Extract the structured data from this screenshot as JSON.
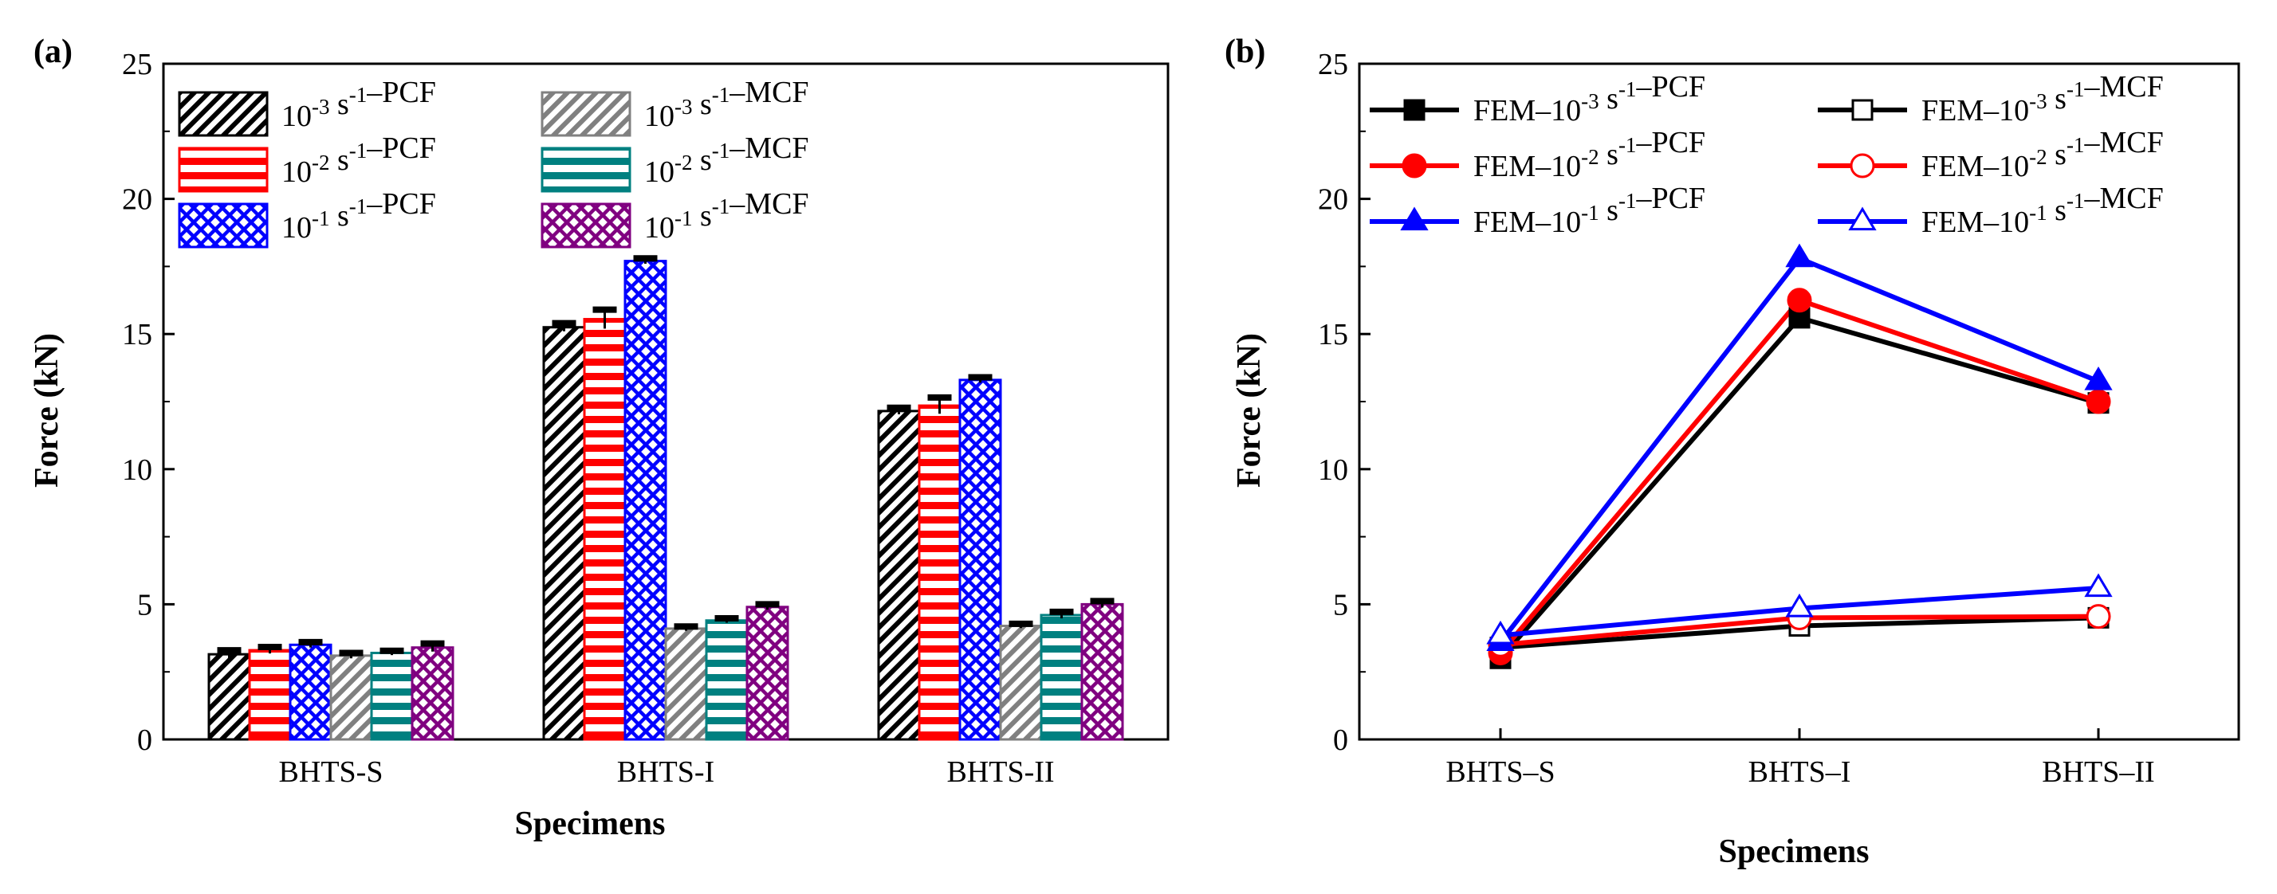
{
  "chart_data": [
    {
      "type": "bar",
      "panel_label": "(a)",
      "categories": [
        "BHTS-S",
        "BHTS-I",
        "BHTS-II"
      ],
      "xlabel": "Specimens",
      "ylabel": "Force (kN)",
      "ylim": [
        0,
        25
      ],
      "yticks": [
        "0",
        "5",
        "10",
        "15",
        "20",
        "25"
      ],
      "legend_position": "top-left",
      "series": [
        {
          "name": {
            "base": "10",
            "exp": "-3",
            "unit": " s",
            "unit_exp": "-1",
            "suffix": "–PCF"
          },
          "values": [
            3.15,
            15.25,
            12.15
          ],
          "errors": [
            0.15,
            0.15,
            0.12
          ],
          "color": "#000000",
          "pattern": "diag"
        },
        {
          "name": {
            "base": "10",
            "exp": "-2",
            "unit": " s",
            "unit_exp": "-1",
            "suffix": "–PCF"
          },
          "values": [
            3.3,
            15.55,
            12.35
          ],
          "errors": [
            0.12,
            0.35,
            0.3
          ],
          "color": "#ff0000",
          "pattern": "horiz"
        },
        {
          "name": {
            "base": "10",
            "exp": "-1",
            "unit": " s",
            "unit_exp": "-1",
            "suffix": "–PCF"
          },
          "values": [
            3.5,
            17.7,
            13.3
          ],
          "errors": [
            0.1,
            0.1,
            0.1
          ],
          "color": "#0000ff",
          "pattern": "cross"
        },
        {
          "name": {
            "base": "10",
            "exp": "-3",
            "unit": " s",
            "unit_exp": "-1",
            "suffix": "–MCF"
          },
          "values": [
            3.1,
            4.1,
            4.2
          ],
          "errors": [
            0.1,
            0.08,
            0.08
          ],
          "color": "#808080",
          "pattern": "diag"
        },
        {
          "name": {
            "base": "10",
            "exp": "-2",
            "unit": " s",
            "unit_exp": "-1",
            "suffix": "–MCF"
          },
          "values": [
            3.2,
            4.4,
            4.6
          ],
          "errors": [
            0.08,
            0.08,
            0.12
          ],
          "color": "#008080",
          "pattern": "horiz"
        },
        {
          "name": {
            "base": "10",
            "exp": "-1",
            "unit": " s",
            "unit_exp": "-1",
            "suffix": "–MCF"
          },
          "values": [
            3.4,
            4.9,
            5.0
          ],
          "errors": [
            0.15,
            0.1,
            0.12
          ],
          "color": "#800080",
          "pattern": "cross"
        }
      ]
    },
    {
      "type": "line",
      "panel_label": "(b)",
      "categories": [
        "BHTS–S",
        "BHTS–I",
        "BHTS–II"
      ],
      "xlabel": "Specimens",
      "ylabel": "Force (kN)",
      "ylim": [
        0,
        25
      ],
      "yticks": [
        "0",
        "5",
        "10",
        "15",
        "20",
        "25"
      ],
      "legend_position": "top",
      "series": [
        {
          "name": {
            "base": "FEM–10",
            "exp": "-3",
            "unit": " s",
            "unit_exp": "-1",
            "suffix": "–PCF"
          },
          "values": [
            3.0,
            15.6,
            12.45
          ],
          "color": "#000000",
          "marker": "square",
          "filled": true
        },
        {
          "name": {
            "base": "FEM–10",
            "exp": "-3",
            "unit": " s",
            "unit_exp": "-1",
            "suffix": "–MCF"
          },
          "values": [
            3.4,
            4.2,
            4.5
          ],
          "color": "#000000",
          "marker": "square",
          "filled": false
        },
        {
          "name": {
            "base": "FEM–10",
            "exp": "-2",
            "unit": " s",
            "unit_exp": "-1",
            "suffix": "–PCF"
          },
          "values": [
            3.2,
            16.25,
            12.5
          ],
          "color": "#ff0000",
          "marker": "circle",
          "filled": true
        },
        {
          "name": {
            "base": "FEM–10",
            "exp": "-2",
            "unit": " s",
            "unit_exp": "-1",
            "suffix": "–MCF"
          },
          "values": [
            3.5,
            4.5,
            4.55
          ],
          "color": "#ff0000",
          "marker": "circle",
          "filled": false
        },
        {
          "name": {
            "base": "FEM–10",
            "exp": "-1",
            "unit": " s",
            "unit_exp": "-1",
            "suffix": "–PCF"
          },
          "values": [
            3.6,
            17.8,
            13.25
          ],
          "color": "#0000ff",
          "marker": "triangle",
          "filled": true
        },
        {
          "name": {
            "base": "FEM–10",
            "exp": "-1",
            "unit": " s",
            "unit_exp": "-1",
            "suffix": "–MCF"
          },
          "values": [
            3.85,
            4.85,
            5.6
          ],
          "color": "#0000ff",
          "marker": "triangle",
          "filled": false
        }
      ]
    }
  ]
}
